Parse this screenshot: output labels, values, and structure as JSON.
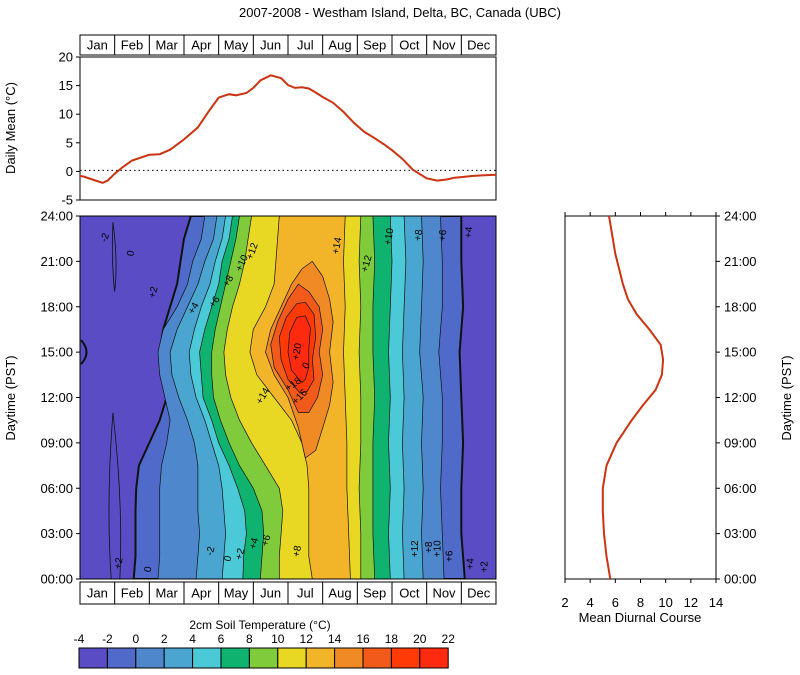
{
  "title": "2007-2008 - Westham Island, Delta, BC, Canada (UBC)",
  "months": [
    "Jan",
    "Feb",
    "Mar",
    "Apr",
    "May",
    "Jun",
    "Jul",
    "Aug",
    "Sep",
    "Oct",
    "Nov",
    "Dec"
  ],
  "chart_data": [
    {
      "type": "line",
      "ylabel": "Daily Mean (°C)",
      "ylim": [
        -5,
        20
      ],
      "yticks": [
        -5,
        0,
        5,
        10,
        15,
        20
      ],
      "zero_line": "dotted",
      "series_color": "#cc3311",
      "x": [
        0.0,
        0.1,
        0.4,
        0.65,
        0.8,
        1.0,
        1.2,
        1.5,
        2.0,
        2.3,
        2.6,
        3.0,
        3.4,
        3.7,
        4.0,
        4.3,
        4.5,
        4.8,
        5.0,
        5.2,
        5.5,
        5.8,
        6.0,
        6.2,
        6.4,
        6.6,
        6.8,
        7.0,
        7.3,
        7.6,
        7.9,
        8.2,
        8.5,
        8.8,
        9.0,
        9.3,
        9.6,
        10.0,
        10.3,
        10.6,
        10.8,
        11.0,
        11.3,
        11.6,
        12.0
      ],
      "y": [
        -0.8,
        -0.9,
        -1.5,
        -2.0,
        -1.6,
        -0.4,
        0.6,
        1.9,
        2.9,
        3.0,
        3.8,
        5.6,
        7.7,
        10.4,
        12.9,
        13.5,
        13.3,
        13.7,
        14.6,
        15.9,
        16.8,
        16.3,
        15.1,
        14.6,
        14.7,
        14.5,
        13.8,
        13.0,
        12.0,
        10.4,
        8.5,
        6.9,
        5.8,
        4.6,
        3.7,
        2.2,
        0.3,
        -1.2,
        -1.6,
        -1.4,
        -1.1,
        -1.0,
        -0.8,
        -0.7,
        -0.6
      ]
    },
    {
      "type": "heatmap",
      "ylabel": "Daytime (PST)",
      "colorbar_label": "2cm Soil Temperature (°C)",
      "colorbar_ticks": [
        "-4",
        "-2",
        "0",
        "2",
        "4",
        "6",
        "8",
        "10",
        "12",
        "14",
        "16",
        "18",
        "20",
        "22"
      ],
      "colorbar_colors": [
        "#5a4cc4",
        "#4f6ac8",
        "#4e87cc",
        "#4aa5d0",
        "#4cc9d6",
        "#0fb36f",
        "#7fcb3b",
        "#e8d824",
        "#f2b52a",
        "#ef8a25",
        "#f15a1b",
        "#ff3a06",
        "#ff2a10"
      ],
      "yticks": [
        "00:00",
        "03:00",
        "06:00",
        "09:00",
        "12:00",
        "15:00",
        "18:00",
        "21:00",
        "24:00"
      ],
      "contour_labels": [
        "-2",
        "0",
        "+2",
        "+4",
        "+6",
        "+8",
        "+10",
        "+12",
        "+14",
        "+16",
        "+18",
        "+20",
        "+14",
        "+12",
        "+10",
        "+8",
        "+6",
        "+4",
        "+2",
        "0",
        "-2",
        "0",
        "+2",
        "+4",
        "+6",
        "+8",
        "+10",
        "+12",
        "+8",
        "+6",
        "+4",
        "+2",
        "0"
      ]
    },
    {
      "type": "line",
      "xlabel": "Mean Diurnal Course",
      "ylabel": "Daytime (PST)",
      "xlim": [
        2,
        14
      ],
      "xticks": [
        2,
        4,
        6,
        8,
        10,
        12,
        14
      ],
      "yticks": [
        "00:00",
        "03:00",
        "06:00",
        "09:00",
        "12:00",
        "15:00",
        "18:00",
        "21:00",
        "24:00"
      ],
      "series_color": "#cc3311",
      "hour": [
        0,
        1.5,
        3,
        4.5,
        6,
        7.5,
        9,
        10.5,
        11.5,
        12.5,
        13.5,
        14.5,
        15.5,
        16.5,
        17.5,
        18.5,
        19.5,
        20.5,
        21.5,
        22.5,
        24
      ],
      "temp": [
        5.6,
        5.3,
        5.1,
        5.0,
        5.0,
        5.3,
        6.1,
        7.3,
        8.2,
        9.2,
        9.7,
        9.8,
        9.6,
        8.7,
        7.7,
        7.0,
        6.6,
        6.3,
        6.0,
        5.8,
        5.5
      ]
    }
  ]
}
